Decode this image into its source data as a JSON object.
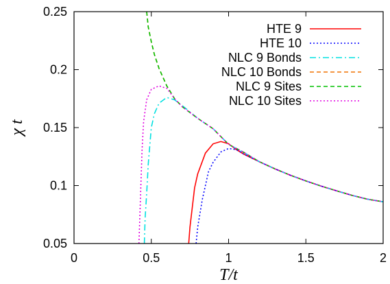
{
  "chart_data": {
    "type": "line",
    "xlabel": "T/t",
    "ylabel": "χ t",
    "xlim": [
      0,
      2
    ],
    "ylim": [
      0.05,
      0.25
    ],
    "x_ticks": [
      {
        "value": 0,
        "label": "0"
      },
      {
        "value": 0.5,
        "label": "0.5"
      },
      {
        "value": 1,
        "label": "1"
      },
      {
        "value": 1.5,
        "label": "1.5"
      },
      {
        "value": 2,
        "label": "2"
      }
    ],
    "y_ticks": [
      {
        "value": 0.05,
        "label": "0.05"
      },
      {
        "value": 0.1,
        "label": "0.1"
      },
      {
        "value": 0.15,
        "label": "0.15"
      },
      {
        "value": 0.2,
        "label": "0.2"
      },
      {
        "value": 0.25,
        "label": "0.25"
      }
    ],
    "grid": false,
    "legend_position": "top-right",
    "series": [
      {
        "name": "HTE 9",
        "color": "#ff0000",
        "dash": "solid",
        "points": [
          [
            0.742,
            0.05
          ],
          [
            0.75,
            0.064
          ],
          [
            0.78,
            0.098
          ],
          [
            0.8,
            0.11
          ],
          [
            0.85,
            0.128
          ],
          [
            0.9,
            0.136
          ],
          [
            0.95,
            0.138
          ],
          [
            1.0,
            0.136
          ],
          [
            1.05,
            0.131
          ],
          [
            1.1,
            0.127
          ],
          [
            1.2,
            0.1205
          ],
          [
            1.3,
            0.1144
          ],
          [
            1.4,
            0.1089
          ],
          [
            1.5,
            0.104
          ],
          [
            1.6,
            0.0995
          ],
          [
            1.7,
            0.0954
          ],
          [
            1.8,
            0.0915
          ],
          [
            1.9,
            0.0882
          ],
          [
            2.0,
            0.086
          ]
        ]
      },
      {
        "name": "HTE 10",
        "color": "#0000ff",
        "dash": "dotted",
        "points": [
          [
            0.79,
            0.05
          ],
          [
            0.8,
            0.064
          ],
          [
            0.83,
            0.088
          ],
          [
            0.87,
            0.112
          ],
          [
            0.9,
            0.12
          ],
          [
            0.95,
            0.129
          ],
          [
            1.0,
            0.132
          ],
          [
            1.05,
            0.131
          ],
          [
            1.1,
            0.127
          ],
          [
            1.2,
            0.1205
          ],
          [
            1.3,
            0.1144
          ],
          [
            1.4,
            0.1089
          ],
          [
            1.5,
            0.104
          ],
          [
            1.6,
            0.0995
          ],
          [
            1.7,
            0.0954
          ],
          [
            1.8,
            0.0915
          ],
          [
            1.9,
            0.0882
          ],
          [
            2.0,
            0.086
          ]
        ]
      },
      {
        "name": "NLC 9 Bonds",
        "color": "#00e0e0",
        "dash": "dashdot",
        "points": [
          [
            0.455,
            0.05
          ],
          [
            0.46,
            0.072
          ],
          [
            0.47,
            0.093
          ],
          [
            0.48,
            0.118
          ],
          [
            0.5,
            0.15
          ],
          [
            0.52,
            0.162
          ],
          [
            0.55,
            0.171
          ],
          [
            0.6,
            0.176
          ],
          [
            0.65,
            0.174
          ],
          [
            0.7,
            0.169
          ],
          [
            0.8,
            0.158
          ],
          [
            0.9,
            0.149
          ],
          [
            1.0,
            0.1355
          ],
          [
            1.1,
            0.1285
          ],
          [
            1.2,
            0.1205
          ],
          [
            1.3,
            0.1144
          ],
          [
            1.4,
            0.1089
          ],
          [
            1.5,
            0.104
          ],
          [
            1.6,
            0.0995
          ],
          [
            1.7,
            0.0954
          ],
          [
            1.8,
            0.0915
          ],
          [
            1.9,
            0.0882
          ],
          [
            2.0,
            0.086
          ]
        ]
      },
      {
        "name": "NLC 10 Bonds",
        "color": "#f07000",
        "dash": "dashed",
        "points": [
          [
            0.47,
            0.25
          ],
          [
            0.48,
            0.237
          ],
          [
            0.5,
            0.224
          ],
          [
            0.52,
            0.213
          ],
          [
            0.55,
            0.201
          ],
          [
            0.6,
            0.186
          ],
          [
            0.65,
            0.175
          ],
          [
            0.7,
            0.168
          ],
          [
            0.8,
            0.158
          ],
          [
            0.9,
            0.149
          ],
          [
            1.0,
            0.1355
          ],
          [
            1.1,
            0.1285
          ],
          [
            1.2,
            0.1205
          ],
          [
            1.3,
            0.1144
          ],
          [
            1.4,
            0.1089
          ],
          [
            1.5,
            0.104
          ],
          [
            1.6,
            0.0995
          ],
          [
            1.7,
            0.0954
          ],
          [
            1.8,
            0.0915
          ],
          [
            1.9,
            0.0882
          ],
          [
            2.0,
            0.086
          ]
        ]
      },
      {
        "name": "NLC 9 Sites",
        "color": "#00c000",
        "dash": "dashed",
        "points": [
          [
            0.47,
            0.25
          ],
          [
            0.48,
            0.237
          ],
          [
            0.5,
            0.224
          ],
          [
            0.52,
            0.213
          ],
          [
            0.55,
            0.201
          ],
          [
            0.6,
            0.186
          ],
          [
            0.65,
            0.175
          ],
          [
            0.7,
            0.168
          ],
          [
            0.8,
            0.158
          ],
          [
            0.9,
            0.149
          ],
          [
            1.0,
            0.1355
          ],
          [
            1.1,
            0.1285
          ],
          [
            1.2,
            0.1205
          ],
          [
            1.3,
            0.1144
          ],
          [
            1.4,
            0.1089
          ],
          [
            1.5,
            0.104
          ],
          [
            1.6,
            0.0995
          ],
          [
            1.7,
            0.0954
          ],
          [
            1.8,
            0.0915
          ],
          [
            1.9,
            0.0882
          ],
          [
            2.0,
            0.086
          ]
        ]
      },
      {
        "name": "NLC 10 Sites",
        "color": "#e000e0",
        "dash": "dotted",
        "points": [
          [
            0.42,
            0.05
          ],
          [
            0.43,
            0.09
          ],
          [
            0.44,
            0.13
          ],
          [
            0.45,
            0.155
          ],
          [
            0.47,
            0.174
          ],
          [
            0.5,
            0.183
          ],
          [
            0.55,
            0.186
          ],
          [
            0.57,
            0.185
          ],
          [
            0.6,
            0.184
          ],
          [
            0.65,
            0.175
          ],
          [
            0.7,
            0.168
          ],
          [
            0.8,
            0.158
          ],
          [
            0.9,
            0.149
          ],
          [
            1.0,
            0.1355
          ],
          [
            1.1,
            0.1285
          ],
          [
            1.2,
            0.1205
          ],
          [
            1.3,
            0.1144
          ],
          [
            1.4,
            0.1089
          ],
          [
            1.5,
            0.104
          ],
          [
            1.6,
            0.0995
          ],
          [
            1.7,
            0.0954
          ],
          [
            1.8,
            0.0915
          ],
          [
            1.9,
            0.0882
          ],
          [
            2.0,
            0.086
          ]
        ]
      }
    ]
  }
}
